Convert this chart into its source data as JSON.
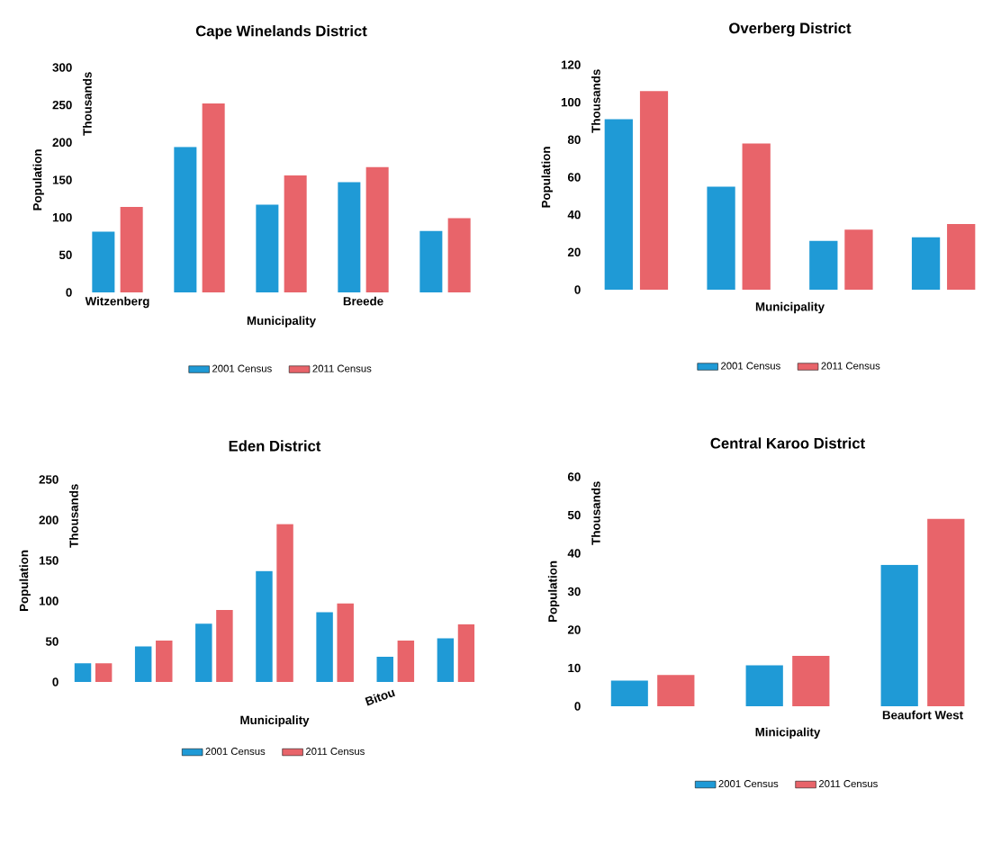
{
  "chart_data": [
    {
      "type": "bar",
      "title": "Cape Winelands District",
      "xlabel": "Municipality",
      "ylabel": "Population",
      "annotations": [
        "Thousands"
      ],
      "categories": [
        "Witzenberg",
        null,
        null,
        "Breede",
        null
      ],
      "series": [
        {
          "name": "2001 Census",
          "color": "#1f9ad6",
          "values": [
            81,
            194,
            117,
            147,
            82
          ]
        },
        {
          "name": "2011 Census",
          "color": "#e8646a",
          "values": [
            114,
            252,
            156,
            167,
            99
          ]
        }
      ],
      "ylim": [
        0,
        300
      ],
      "yticks": [
        0,
        50,
        100,
        150,
        200,
        250,
        300
      ],
      "legend": "bottom"
    },
    {
      "type": "bar",
      "title": "Overberg District",
      "xlabel": "Municipality",
      "ylabel": "Population",
      "annotations": [
        "Thousands"
      ],
      "categories": [
        null,
        null,
        null,
        null
      ],
      "series": [
        {
          "name": "2001 Census",
          "color": "#1f9ad6",
          "values": [
            91,
            55,
            26,
            28
          ]
        },
        {
          "name": "2011 Census",
          "color": "#e8646a",
          "values": [
            106,
            78,
            32,
            35
          ]
        }
      ],
      "ylim": [
        0,
        120
      ],
      "yticks": [
        0,
        20,
        40,
        60,
        80,
        100,
        120
      ],
      "legend": "bottom"
    },
    {
      "type": "bar",
      "title": "Eden District",
      "xlabel": "Municipality",
      "ylabel": "Population",
      "annotations": [
        "Thousands"
      ],
      "categories": [
        null,
        null,
        null,
        null,
        null,
        "Bitou",
        null
      ],
      "series": [
        {
          "name": "2001 Census",
          "color": "#1f9ad6",
          "values": [
            23,
            44,
            72,
            137,
            86,
            31,
            54
          ]
        },
        {
          "name": "2011 Census",
          "color": "#e8646a",
          "values": [
            23,
            51,
            89,
            195,
            97,
            51,
            71
          ]
        }
      ],
      "ylim": [
        0,
        250
      ],
      "yticks": [
        0,
        50,
        100,
        150,
        200,
        250
      ],
      "legend": "bottom"
    },
    {
      "type": "bar",
      "title": "Central Karoo District",
      "xlabel": "Minicipality",
      "ylabel": "Population",
      "annotations": [
        "Thousands"
      ],
      "categories": [
        null,
        null,
        "Beaufort West"
      ],
      "series": [
        {
          "name": "2001 Census",
          "color": "#1f9ad6",
          "values": [
            6.7,
            10.7,
            37
          ]
        },
        {
          "name": "2011 Census",
          "color": "#e8646a",
          "values": [
            8.2,
            13.2,
            49
          ]
        }
      ],
      "ylim": [
        0,
        60
      ],
      "yticks": [
        0,
        10,
        20,
        30,
        40,
        50,
        60
      ],
      "legend": "bottom"
    }
  ]
}
